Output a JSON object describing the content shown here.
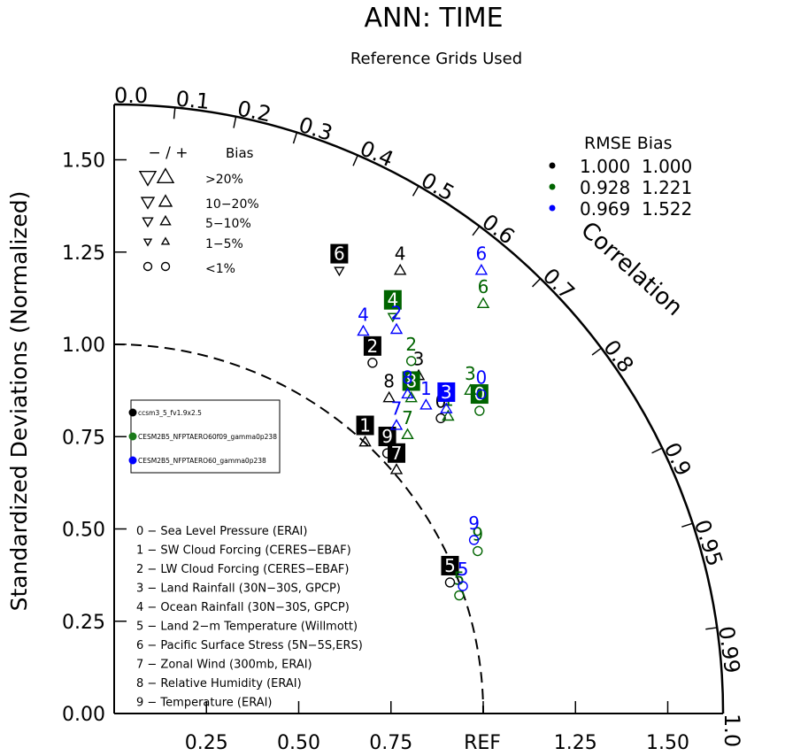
{
  "title": "ANN: TIME",
  "subtitle": "Reference Grids Used",
  "chart_data": {
    "type": "taylor",
    "title": "ANN: TIME",
    "subtitle": "Reference Grids Used",
    "ylabel": "Standardized Deviations (Normalized)",
    "arc_label": "Correlation",
    "ref_label": "REF",
    "std_max": 1.65,
    "y_ticks": [
      "0.00",
      "0.25",
      "0.50",
      "0.75",
      "1.00",
      "1.25",
      "1.50"
    ],
    "y_tick_values": [
      0,
      0.25,
      0.5,
      0.75,
      1.0,
      1.25,
      1.5
    ],
    "x_ticks": [
      "0.25",
      "0.50",
      "0.75",
      "1.25",
      "1.50"
    ],
    "x_tick_values": [
      0.25,
      0.5,
      0.75,
      1.25,
      1.5
    ],
    "corr_ticks": [
      "0.0",
      "0.1",
      "0.2",
      "0.3",
      "0.4",
      "0.5",
      "0.6",
      "0.7",
      "0.8",
      "0.9",
      "0.95",
      "0.99",
      "1.0"
    ],
    "corr_tick_values": [
      0.0,
      0.1,
      0.2,
      0.3,
      0.4,
      0.5,
      0.6,
      0.7,
      0.8,
      0.9,
      0.95,
      0.99,
      1.0
    ],
    "bias_legend": {
      "header_minus_plus": "− / +",
      "header_bias": "Bias",
      "rows": [
        {
          "label": ">20%",
          "size": 18
        },
        {
          "label": "10−20%",
          "size": 14
        },
        {
          "label": "5−10%",
          "size": 11
        },
        {
          "label": "1−5%",
          "size": 8
        },
        {
          "label": "<1%",
          "size": 9
        }
      ]
    },
    "rmse_legend": {
      "header": "RMSE  Bias",
      "rows": [
        {
          "color": "#000000",
          "rmse": "1.000",
          "bias": "1.000"
        },
        {
          "color": "#006400",
          "rmse": "0.928",
          "bias": "1.221"
        },
        {
          "color": "#0000ff",
          "rmse": "0.969",
          "bias": "1.522"
        }
      ]
    },
    "case_legend": [
      {
        "color": "#000000",
        "name": "ccsm3_5_fv1.9x2.5"
      },
      {
        "color": "#1a7a1a",
        "name": "CESM2B5_NFPTAERO60f09_gamma0p238"
      },
      {
        "color": "#0000ff",
        "name": "CESM2B5_NFPTAERO60_gamma0p238"
      }
    ],
    "variables": [
      "0 − Sea Level Pressure (ERAI)",
      "1 − SW Cloud Forcing (CERES−EBAF)",
      "2 − LW Cloud Forcing (CERES−EBAF)",
      "3 − Land Rainfall (30N−30S, GPCP)",
      "4 − Ocean Rainfall (30N−30S, GPCP)",
      "5 − Land 2−m Temperature (Willmott)",
      "6 − Pacific Surface Stress (5N−5S,ERS)",
      "7 − Zonal Wind (300mb, ERAI)",
      "8 − Relative Humidity (ERAI)",
      "9 − Temperature (ERAI)"
    ],
    "series": [
      {
        "name": "ccsm3_5_fv1.9x2.5",
        "color": "#000000",
        "points": [
          {
            "label": "0",
            "x": 0.885,
            "y": 0.8,
            "marker": "circle",
            "boxed": false
          },
          {
            "label": "1",
            "x": 0.68,
            "y": 0.735,
            "marker": "up",
            "boxed": true
          },
          {
            "label": "2",
            "x": 0.7,
            "y": 0.95,
            "marker": "circle",
            "boxed": true
          },
          {
            "label": "3",
            "x": 0.825,
            "y": 0.915,
            "marker": "up",
            "boxed": false
          },
          {
            "label": "4",
            "x": 0.775,
            "y": 1.2,
            "marker": "up",
            "boxed": false
          },
          {
            "label": "5",
            "x": 0.91,
            "y": 0.355,
            "marker": "circle",
            "boxed": true
          },
          {
            "label": "6",
            "x": 0.61,
            "y": 1.2,
            "marker": "down",
            "boxed": true
          },
          {
            "label": "7",
            "x": 0.765,
            "y": 0.66,
            "marker": "up",
            "boxed": true
          },
          {
            "label": "8",
            "x": 0.745,
            "y": 0.855,
            "marker": "up",
            "boxed": false
          },
          {
            "label": "9",
            "x": 0.74,
            "y": 0.705,
            "marker": "circle",
            "boxed": true
          }
        ]
      },
      {
        "name": "CESM2B5_NFPTAERO60f09_gamma0p238",
        "color": "#006400",
        "points": [
          {
            "label": "0",
            "x": 0.99,
            "y": 0.82,
            "marker": "circle",
            "boxed": true
          },
          {
            "label": "1",
            "x": 0.905,
            "y": 0.805,
            "marker": "up",
            "boxed": false
          },
          {
            "label": "2",
            "x": 0.805,
            "y": 0.955,
            "marker": "circle",
            "boxed": false
          },
          {
            "label": "3",
            "x": 0.965,
            "y": 0.875,
            "marker": "up",
            "boxed": false
          },
          {
            "label": "4",
            "x": 0.755,
            "y": 1.075,
            "marker": "down",
            "boxed": true
          },
          {
            "label": "5",
            "x": 0.935,
            "y": 0.32,
            "marker": "circle",
            "boxed": false
          },
          {
            "label": "6",
            "x": 1.0,
            "y": 1.11,
            "marker": "up",
            "boxed": false
          },
          {
            "label": "7",
            "x": 0.795,
            "y": 0.755,
            "marker": "up",
            "boxed": false
          },
          {
            "label": "8",
            "x": 0.805,
            "y": 0.855,
            "marker": "up",
            "boxed": true
          },
          {
            "label": "9",
            "x": 0.985,
            "y": 0.44,
            "marker": "circle",
            "boxed": false
          }
        ]
      },
      {
        "name": "CESM2B5_NFPTAERO60_gamma0p238",
        "color": "#0000ff",
        "points": [
          {
            "label": "0",
            "x": 0.995,
            "y": 0.865,
            "marker": "circle",
            "boxed": false
          },
          {
            "label": "1",
            "x": 0.845,
            "y": 0.835,
            "marker": "up",
            "boxed": false
          },
          {
            "label": "2",
            "x": 0.765,
            "y": 1.04,
            "marker": "up",
            "boxed": false
          },
          {
            "label": "3",
            "x": 0.9,
            "y": 0.825,
            "marker": "up",
            "boxed": true
          },
          {
            "label": "4",
            "x": 0.675,
            "y": 1.035,
            "marker": "up",
            "boxed": false
          },
          {
            "label": "5",
            "x": 0.945,
            "y": 0.345,
            "marker": "circle",
            "boxed": false
          },
          {
            "label": "6",
            "x": 0.995,
            "y": 1.2,
            "marker": "up",
            "boxed": false
          },
          {
            "label": "7",
            "x": 0.765,
            "y": 0.78,
            "marker": "up",
            "boxed": false
          },
          {
            "label": "8",
            "x": 0.795,
            "y": 0.865,
            "marker": "up",
            "boxed": false
          },
          {
            "label": "9",
            "x": 0.975,
            "y": 0.47,
            "marker": "circle",
            "boxed": false
          }
        ]
      }
    ]
  }
}
